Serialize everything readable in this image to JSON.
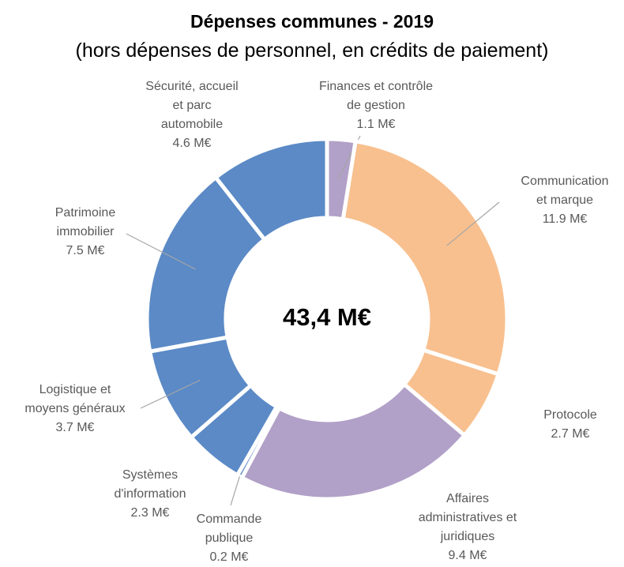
{
  "chart_data": {
    "type": "donut",
    "title": "Dépenses communes - 2019",
    "subtitle": "(hors dépenses de personnel, en crédits de paiement)",
    "center_label": "43,4 M€",
    "categories": [
      "Finances et contrôle\nde gestion",
      "Communication\net marque",
      "Protocole",
      "Affaires\nadministratives et\njuridiques",
      "Commande\npublique",
      "Systèmes\nd'information",
      "Logistique et\nmoyens généraux",
      "Patrimoine\nimmobilier",
      "Sécurité, accueil\net parc\nautomobile"
    ],
    "values": [
      1.1,
      11.9,
      2.7,
      9.4,
      0.2,
      2.3,
      3.7,
      7.5,
      4.6
    ],
    "value_labels": [
      "1.1 M€",
      "11.9 M€",
      "2.7 M€",
      "9.4 M€",
      "0.2 M€",
      "2.3 M€",
      "3.7 M€",
      "7.5 M€",
      "4.6 M€"
    ],
    "colors": [
      "#b1a0c7",
      "#f8c08f",
      "#f8c08f",
      "#b1a0c7",
      "#5b8ac6",
      "#5b8ac6",
      "#5b8ac6",
      "#5b8ac6",
      "#5b8ac6"
    ]
  }
}
